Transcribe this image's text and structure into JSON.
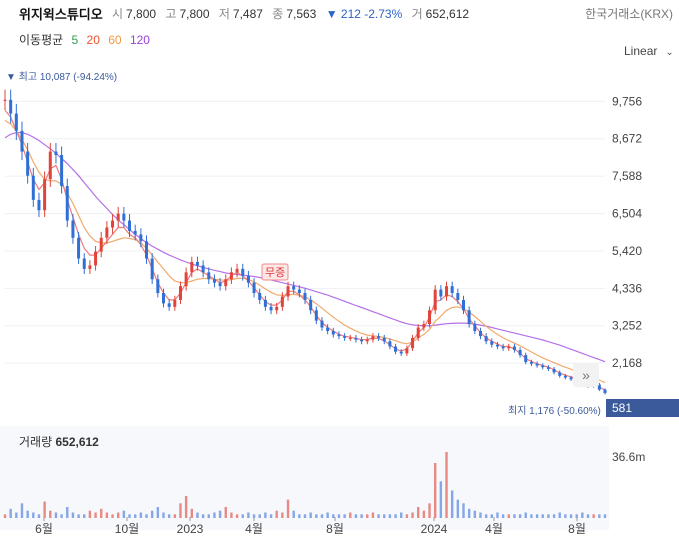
{
  "header": {
    "stock_name": "위지윅스튜디오",
    "open_label": "시",
    "open": "7,800",
    "high_label": "고",
    "high": "7,800",
    "low_label": "저",
    "low": "7,487",
    "close_label": "종",
    "close": "7,563",
    "change": "▼ 212 -2.73%",
    "volume_label": "거",
    "volume": "652,612",
    "exchange": "한국거래소(KRX)"
  },
  "moving_averages": {
    "label": "이동평균",
    "periods": [
      {
        "text": "5",
        "color": "#2e9e4f"
      },
      {
        "text": "20",
        "color": "#f0522d"
      },
      {
        "text": "60",
        "color": "#f29a3c"
      },
      {
        "text": "120",
        "color": "#9b41d8"
      }
    ]
  },
  "scale_mode": "Linear",
  "nav_button": "»",
  "chart_data": {
    "type": "candlestick",
    "y_ticks": [
      9756,
      8672,
      7588,
      6504,
      5420,
      4336,
      3252,
      2168
    ],
    "y_tick_labels": [
      "9,756",
      "8,672",
      "7,588",
      "6,504",
      "5,420",
      "4,336",
      "3,252",
      "2,168"
    ],
    "x_tick_labels": [
      "6월",
      "10월",
      "2023",
      "4월",
      "8월",
      "2024",
      "4월",
      "8월"
    ],
    "max_annotation": "▼ 최고 10,087 (-94.24%)",
    "min_annotation": "최지 1,176 (-50.60%)",
    "event_label": "무증",
    "current_price": "581",
    "price_series": [
      9800,
      9400,
      8900,
      8300,
      7600,
      6900,
      6600,
      7500,
      8300,
      8200,
      7300,
      6300,
      5800,
      5200,
      4900,
      5000,
      5400,
      5800,
      6100,
      6300,
      6500,
      6300,
      6000,
      5900,
      5700,
      5200,
      4600,
      4200,
      3900,
      3800,
      4000,
      4400,
      4800,
      5100,
      5000,
      4800,
      4600,
      4500,
      4400,
      4600,
      4800,
      4900,
      4700,
      4500,
      4200,
      4000,
      3800,
      3700,
      3800,
      4100,
      4400,
      4300,
      4200,
      4000,
      3700,
      3400,
      3200,
      3100,
      3000,
      2950,
      2900,
      2900,
      2850,
      2800,
      2850,
      2950,
      2900,
      2800,
      2650,
      2500,
      2450,
      2600,
      2900,
      3200,
      3300,
      3700,
      4300,
      4100,
      4400,
      4200,
      4000,
      3700,
      3300,
      3100,
      2950,
      2800,
      2700,
      2650,
      2600,
      2650,
      2550,
      2400,
      2200,
      2150,
      2100,
      2050,
      2000,
      1900,
      1800,
      1750,
      1700,
      1650,
      1600,
      1500,
      1550,
      1400,
      1300
    ],
    "ma20_series": [
      9500,
      9300,
      8900,
      8500,
      8000,
      7500,
      7200,
      7400,
      7800,
      7900,
      7500,
      6900,
      6400,
      5900,
      5500,
      5300,
      5300,
      5500,
      5700,
      5900,
      6100,
      6100,
      5900,
      5800,
      5600,
      5300,
      4900,
      4500,
      4200,
      4000,
      4000,
      4200,
      4500,
      4800,
      4900,
      4800,
      4700,
      4600,
      4500,
      4550,
      4700,
      4800,
      4700,
      4550,
      4350,
      4150,
      3950,
      3850,
      3850,
      4000,
      4250,
      4250,
      4150,
      4000,
      3800,
      3550,
      3350,
      3200,
      3100,
      3000,
      2950,
      2920,
      2880,
      2850,
      2850,
      2900,
      2880,
      2820,
      2700,
      2580,
      2520,
      2580,
      2800,
      3050,
      3200,
      3500,
      3950,
      4000,
      4150,
      4100,
      3950,
      3750,
      3450,
      3250,
      3050,
      2900,
      2800,
      2720,
      2650,
      2650,
      2580,
      2450,
      2300,
      2220,
      2150,
      2100,
      2050,
      1980,
      1880,
      1820,
      1770,
      1720,
      1670,
      1580,
      1580,
      1480,
      1380
    ],
    "ma60_series": [
      9200,
      9100,
      8900,
      8650,
      8350,
      8000,
      7700,
      7500,
      7450,
      7450,
      7350,
      7100,
      6800,
      6450,
      6100,
      5850,
      5700,
      5650,
      5650,
      5700,
      5750,
      5800,
      5780,
      5750,
      5650,
      5500,
      5300,
      5100,
      4900,
      4700,
      4550,
      4500,
      4500,
      4550,
      4600,
      4620,
      4620,
      4600,
      4580,
      4570,
      4590,
      4620,
      4630,
      4600,
      4520,
      4430,
      4320,
      4220,
      4150,
      4130,
      4150,
      4160,
      4140,
      4090,
      4000,
      3890,
      3760,
      3630,
      3500,
      3380,
      3270,
      3180,
      3100,
      3030,
      2980,
      2960,
      2940,
      2910,
      2870,
      2820,
      2760,
      2730,
      2780,
      2900,
      3000,
      3150,
      3380,
      3530,
      3700,
      3780,
      3800,
      3750,
      3650,
      3520,
      3380,
      3240,
      3110,
      3000,
      2900,
      2820,
      2750,
      2670,
      2580,
      2490,
      2400,
      2320,
      2250,
      2180,
      2110,
      2050,
      1990,
      1930,
      1870,
      1800,
      1750,
      1680,
      1600
    ],
    "ma120_series": [
      8700,
      8800,
      8850,
      8850,
      8800,
      8720,
      8620,
      8500,
      8380,
      8250,
      8100,
      7950,
      7780,
      7600,
      7400,
      7200,
      7000,
      6820,
      6650,
      6480,
      6320,
      6180,
      6040,
      5900,
      5780,
      5660,
      5560,
      5470,
      5380,
      5300,
      5230,
      5160,
      5100,
      5040,
      4990,
      4940,
      4900,
      4860,
      4820,
      4780,
      4760,
      4740,
      4720,
      4700,
      4680,
      4650,
      4620,
      4580,
      4540,
      4500,
      4460,
      4420,
      4380,
      4340,
      4290,
      4240,
      4190,
      4140,
      4080,
      4020,
      3960,
      3900,
      3840,
      3780,
      3720,
      3660,
      3600,
      3540,
      3480,
      3420,
      3360,
      3310,
      3280,
      3260,
      3250,
      3250,
      3270,
      3290,
      3310,
      3320,
      3330,
      3330,
      3320,
      3300,
      3270,
      3240,
      3200,
      3160,
      3120,
      3080,
      3040,
      3000,
      2960,
      2920,
      2880,
      2840,
      2790,
      2740,
      2690,
      2630,
      2570,
      2510,
      2450,
      2390,
      2330,
      2270,
      2210
    ],
    "volume_series": [
      2,
      5,
      3,
      8,
      4,
      3,
      2,
      9,
      4,
      3,
      2,
      6,
      3,
      2,
      2,
      4,
      3,
      5,
      3,
      2,
      3,
      4,
      2,
      2,
      3,
      2,
      4,
      6,
      3,
      2,
      2,
      8,
      12,
      5,
      3,
      2,
      2,
      3,
      4,
      6,
      3,
      2,
      2,
      3,
      2,
      2,
      3,
      2,
      4,
      3,
      10,
      4,
      2,
      2,
      3,
      2,
      2,
      3,
      2,
      2,
      2,
      3,
      2,
      2,
      2,
      3,
      2,
      2,
      2,
      2,
      3,
      2,
      3,
      6,
      4,
      8,
      30,
      20,
      36,
      15,
      10,
      8,
      5,
      4,
      3,
      2,
      2,
      3,
      2,
      2,
      2,
      2,
      3,
      2,
      2,
      2,
      2,
      2,
      3,
      2,
      2,
      2,
      3,
      2,
      2,
      2,
      2
    ],
    "y_label": "36.6m",
    "volume_title": "거래량",
    "volume_value": "652,612"
  }
}
